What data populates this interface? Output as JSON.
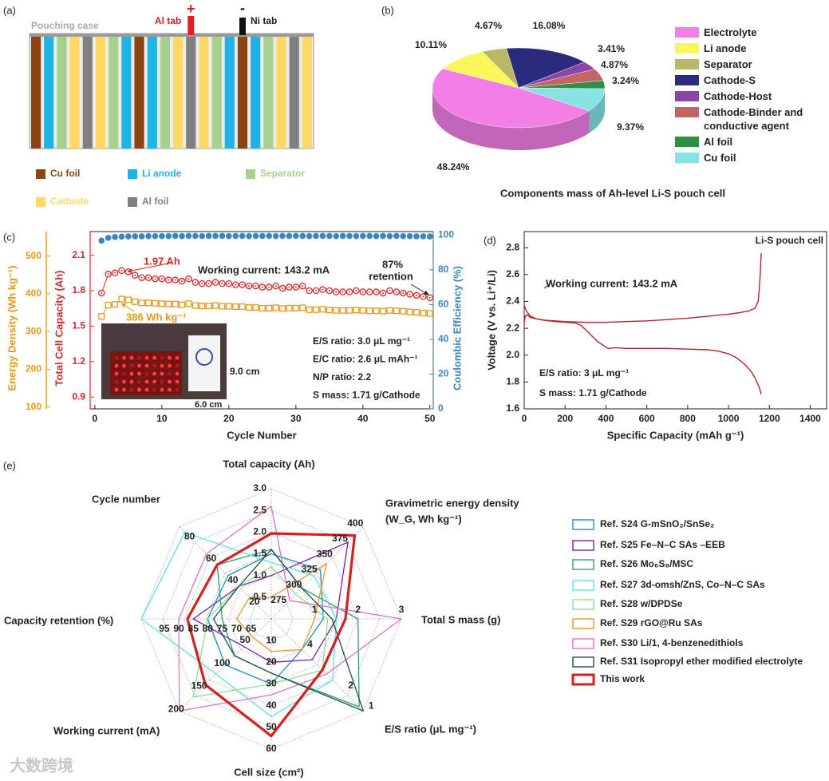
{
  "diagram": {
    "panel_label": "(a)",
    "case_label": "Pouching case",
    "positive_tab": {
      "label": "Al tab",
      "sign": "+"
    },
    "negative_tab": {
      "label": "Ni tab",
      "sign": "-"
    },
    "legend": [
      {
        "name": "Cu foil",
        "color": "#8b4513"
      },
      {
        "name": "Li anode",
        "color": "#1eb4e6"
      },
      {
        "name": "Separator",
        "color": "#a9d18e"
      },
      {
        "name": "Cathode",
        "color": "#ffd966"
      },
      {
        "name": "Al foil",
        "color": "#7f7f7f"
      }
    ]
  },
  "chart_data": [
    {
      "type": "pie",
      "panel_label": "(b)",
      "title": "Components mass of Ah-level Li-S pouch cell",
      "categories": [
        "Electrolyte",
        "Li anode",
        "Separator",
        "Cathode-S",
        "Cathode-Host",
        "Cathode-Binder and conductive agent",
        "Al foil",
        "Cu foil"
      ],
      "values": [
        48.24,
        10.11,
        4.67,
        16.08,
        3.41,
        4.87,
        3.24,
        9.37
      ],
      "value_labels": [
        "48.24%",
        "10.11%",
        "4.67%",
        "16.08%",
        "3.41%",
        "4.87%",
        "3.24%",
        "9.37%"
      ],
      "colors": [
        "#f27fe6",
        "#fbf75a",
        "#b9b866",
        "#2b2b7e",
        "#8a45a8",
        "#c46464",
        "#2f8f45",
        "#86e3e3"
      ]
    },
    {
      "type": "line",
      "panel_label": "(c)",
      "x": [
        1,
        2,
        3,
        4,
        5,
        6,
        7,
        8,
        9,
        10,
        11,
        12,
        13,
        14,
        15,
        16,
        17,
        18,
        19,
        20,
        21,
        22,
        23,
        24,
        25,
        26,
        27,
        28,
        29,
        30,
        31,
        32,
        33,
        34,
        35,
        36,
        37,
        38,
        39,
        40,
        41,
        42,
        43,
        44,
        45,
        46,
        47,
        48,
        49,
        50
      ],
      "xlim": [
        -0.7,
        50.5
      ],
      "xticks": [
        0,
        10,
        20,
        30,
        40,
        50
      ],
      "xlabel": "Cycle Number",
      "ylim": [
        0.8,
        2.3
      ],
      "yticks": [
        0.9,
        1.2,
        1.5,
        1.8,
        2.1
      ],
      "y2lim": [
        0,
        102
      ],
      "y2ticks": [
        0,
        20,
        40,
        60,
        80,
        100
      ],
      "y3lim": [
        95,
        565
      ],
      "y3ticks": [
        100,
        200,
        300,
        400,
        500
      ],
      "series": [
        {
          "name": "Total Cell Capacity (Ah)",
          "color": "#d42a2a",
          "axis": "y",
          "values": [
            1.78,
            1.94,
            1.95,
            1.97,
            1.96,
            1.93,
            1.91,
            1.91,
            1.9,
            1.9,
            1.89,
            1.89,
            1.88,
            1.9,
            1.87,
            1.86,
            1.86,
            1.87,
            1.86,
            1.86,
            1.85,
            1.85,
            1.84,
            1.84,
            1.83,
            1.83,
            1.84,
            1.82,
            1.83,
            1.83,
            1.84,
            1.8,
            1.8,
            1.81,
            1.8,
            1.79,
            1.79,
            1.79,
            1.8,
            1.79,
            1.79,
            1.79,
            1.78,
            1.8,
            1.79,
            1.78,
            1.77,
            1.76,
            1.75,
            1.74
          ]
        },
        {
          "name": "Energy Density (Wh kg⁻¹)",
          "color": "#e39a1c",
          "axis": "y3",
          "values": [
            340,
            370,
            372,
            386,
            384,
            379,
            376,
            376,
            375,
            374,
            373,
            373,
            371,
            374,
            369,
            368,
            368,
            369,
            367,
            367,
            366,
            366,
            364,
            364,
            362,
            362,
            363,
            361,
            362,
            362,
            363,
            358,
            358,
            359,
            357,
            356,
            356,
            356,
            357,
            356,
            355,
            355,
            354,
            356,
            355,
            354,
            352,
            351,
            349,
            348
          ]
        },
        {
          "name": "Coulombic Efficiency (%)",
          "color": "#3a86c0",
          "axis": "y2",
          "values": [
            96.8,
            98.4,
            98.9,
            99.1,
            99.2,
            99.3,
            99.3,
            99.4,
            99.4,
            99.4,
            99.4,
            99.5,
            99.4,
            99.5,
            99.5,
            99.4,
            99.5,
            99.5,
            99.5,
            99.4,
            99.5,
            99.5,
            99.4,
            99.5,
            99.5,
            99.5,
            99.4,
            99.5,
            99.5,
            99.5,
            99.5,
            99.4,
            99.5,
            99.5,
            99.5,
            99.4,
            99.5,
            99.5,
            99.4,
            99.5,
            99.5,
            99.4,
            99.5,
            99.4,
            99.5,
            99.4,
            99.4,
            99.3,
            99.3,
            99.2
          ]
        }
      ],
      "peak_capacity_label": "1.97 Ah",
      "peak_energy_label": "386 Wh kg⁻¹",
      "current_note": "Working current: 143.2 mA",
      "retention_note": [
        "87%",
        "retention"
      ],
      "inset_notes": [
        "E/S ratio: 3.0 μL mg⁻¹",
        "E/C ratio: 2.6 μL mAh⁻¹",
        "N/P ratio: 2.2",
        "S mass: 1.71 g/Cathode"
      ],
      "photo_dims": [
        "9.0 cm",
        "6.0 cm"
      ]
    },
    {
      "type": "line",
      "panel_label": "(d)",
      "xlabel": "Specific Capacity (mAh g⁻¹)",
      "ylabel": "Voltage (V vs. Li⁺/Li)",
      "xlim": [
        0,
        1480
      ],
      "xticks": [
        0,
        200,
        400,
        600,
        800,
        1000,
        1200,
        1400
      ],
      "ylim": [
        1.6,
        2.92
      ],
      "yticks": [
        1.6,
        1.8,
        {
          "value": 2,
          "label": "2.0"
        },
        2.2,
        2.4,
        2.6,
        2.8
      ],
      "series": [
        {
          "color": "#b5242a",
          "axis": "y",
          "x": [
            0,
            10,
            30,
            60,
            100,
            150,
            200,
            250,
            280,
            320,
            360,
            390,
            410,
            450,
            500,
            600,
            700,
            800,
            900,
            950,
            1000,
            1040,
            1080,
            1110,
            1130,
            1150,
            1160
          ],
          "values": [
            2.37,
            2.33,
            2.29,
            2.27,
            2.26,
            2.25,
            2.245,
            2.24,
            2.22,
            2.16,
            2.1,
            2.07,
            2.05,
            2.055,
            2.05,
            2.05,
            2.05,
            2.045,
            2.04,
            2.03,
            2.01,
            1.98,
            1.93,
            1.88,
            1.83,
            1.76,
            1.71
          ]
        },
        {
          "color": "#b5242a",
          "axis": "y",
          "x": [
            0,
            5,
            15,
            30,
            60,
            100,
            200,
            300,
            400,
            500,
            600,
            700,
            800,
            900,
            1000,
            1050,
            1100,
            1130,
            1145,
            1150,
            1155,
            1160
          ],
          "values": [
            2.24,
            2.29,
            2.3,
            2.28,
            2.27,
            2.26,
            2.25,
            2.245,
            2.245,
            2.25,
            2.255,
            2.265,
            2.275,
            2.29,
            2.305,
            2.315,
            2.33,
            2.35,
            2.4,
            2.48,
            2.6,
            2.76
          ]
        }
      ],
      "cell_label": "Li-S pouch cell",
      "current_note": "Working current: 143.2 mA",
      "notes": [
        "E/S ratio: 3 μL mg⁻¹",
        "S mass: 1.71 g/Cathode"
      ]
    },
    {
      "type": "radar",
      "panel_label": "(e)",
      "axes": [
        {
          "label": [
            "Total capacity (Ah)"
          ],
          "range": [
            0,
            3
          ],
          "ticks": [
            0.5,
            {
              "value": 1,
              "label": "1.0"
            },
            1.5,
            {
              "value": 2,
              "label": "2.0"
            },
            2.5,
            {
              "value": 3,
              "label": "3.0"
            }
          ]
        },
        {
          "label": [
            "Gravimetric energy density",
            "(W_G, Wh kg⁻¹)"
          ],
          "range": [
            250,
            400
          ],
          "ticks": [
            275,
            300,
            325,
            350,
            375,
            400
          ]
        },
        {
          "label": [
            "Total S mass (g)"
          ],
          "range": [
            0,
            3
          ],
          "ticks": [
            1,
            2,
            3
          ]
        },
        {
          "label": [
            "E/S ratio (μL mg⁻¹)"
          ],
          "range": [
            5.5,
            1
          ],
          "ticks": [
            4,
            2,
            1
          ]
        },
        {
          "label": [
            "Cell size (cm²)"
          ],
          "range": [
            0,
            60
          ],
          "ticks": [
            10,
            20,
            30,
            40,
            50,
            60
          ]
        },
        {
          "label": [
            "Working current (mA)"
          ],
          "range": [
            0,
            200
          ],
          "ticks": [
            50,
            100,
            150,
            200
          ]
        },
        {
          "label": [
            "Capacity retention (%)"
          ],
          "range": [
            58,
            103
          ],
          "ticks": [
            65,
            70,
            75,
            80,
            85,
            90,
            95
          ]
        },
        {
          "label": [
            "Cycle number"
          ],
          "range": [
            0,
            85
          ],
          "ticks": [
            20,
            40,
            60,
            80
          ]
        }
      ],
      "series": [
        {
          "name": "Ref. S24  G-mSnO₂/SnSe₂",
          "color": "#1f8fc8",
          "values": [
            1.5,
            330,
            1.2,
            4,
            30,
            100,
            80,
            40
          ]
        },
        {
          "name": "Ref. S25  Fe–N–C SAs –EEB",
          "color": "#7b1fa2",
          "values": [
            1.0,
            375,
            1.5,
            3.5,
            20,
            60,
            85,
            30
          ]
        },
        {
          "name": "Ref. S26  Mo₆S₈/MSC",
          "color": "#2e9e6e",
          "values": [
            1.6,
            300,
            2.0,
            1.2,
            25,
            80,
            75,
            50
          ]
        },
        {
          "name": "Ref. S27  3d-omsh/ZnS, Co–N–C SAs",
          "color": "#5ee0e8",
          "values": [
            1.3,
            320,
            1.5,
            2.5,
            45,
            120,
            103,
            80
          ]
        },
        {
          "name": "Ref. S28  w/DPDSe",
          "color": "#90e090",
          "values": [
            1.2,
            290,
            1.3,
            3,
            30,
            170,
            80,
            30
          ]
        },
        {
          "name": "Ref. S29  rGO@Ru SAs",
          "color": "#e8962a",
          "values": [
            0.5,
            340,
            1.0,
            4,
            15,
            40,
            70,
            20
          ]
        },
        {
          "name": "Ref. S30  Li/1, 4-benzenedithiols",
          "color": "#e070c8",
          "values": [
            2.6,
            280,
            3,
            2.8,
            35,
            200,
            90,
            60
          ]
        },
        {
          "name": "Ref. S31  Isopropyl ether modified electrolyte",
          "color": "#1f5040",
          "values": [
            1.6,
            300,
            1.4,
            1,
            25,
            80,
            78,
            30
          ]
        },
        {
          "name": "This work",
          "color": "#d62020",
          "values": [
            1.97,
            386,
            1.71,
            3.0,
            54,
            143.2,
            87,
            50
          ]
        }
      ]
    }
  ],
  "watermark": "大数跨境"
}
